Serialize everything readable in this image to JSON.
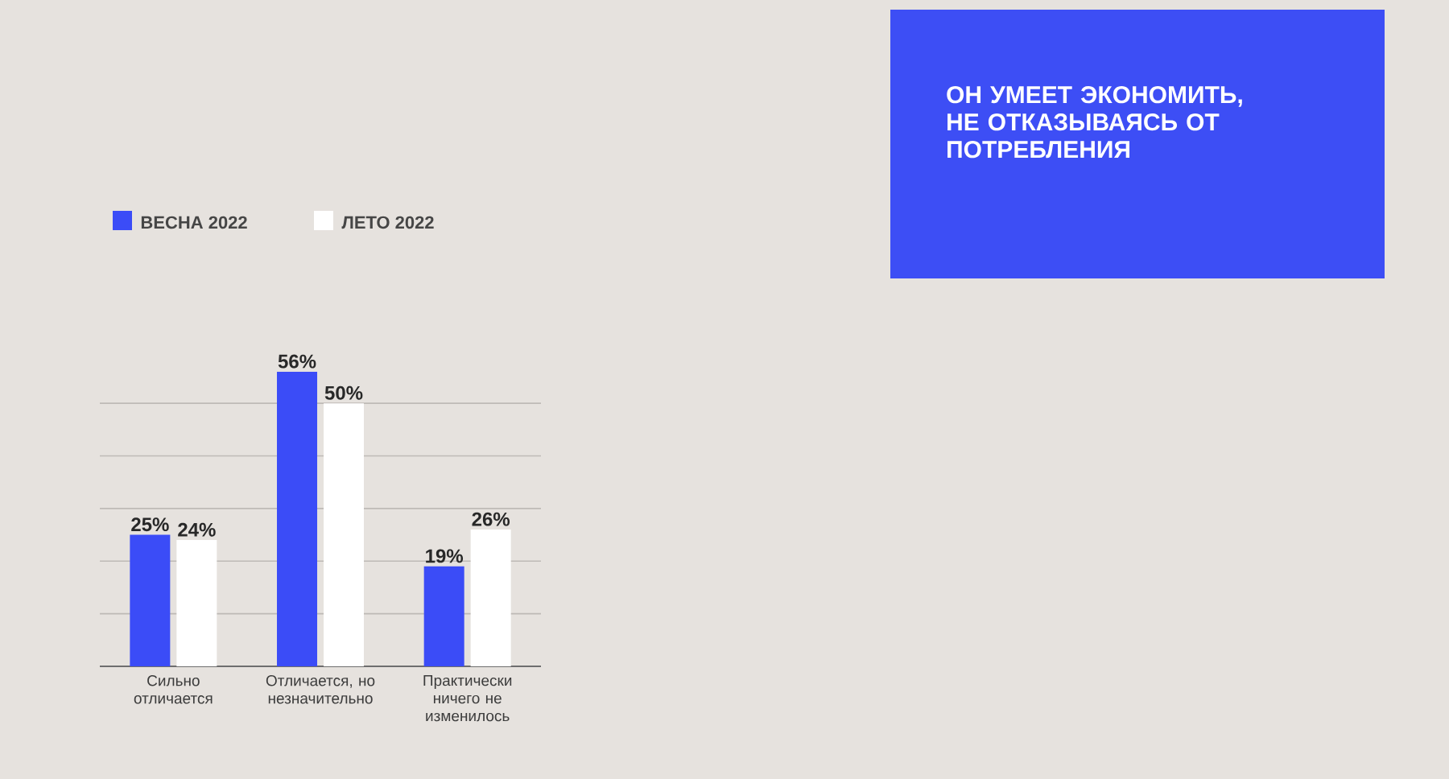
{
  "chart_data": {
    "type": "bar",
    "title": "ОН УМЕЕТ ЭКОНОМИТЬ, НЕ ОТКАЗЫВАЯСЬ ОТ ПОТРЕБЛЕНИЯ",
    "categories": [
      "Сильно отличается",
      "Отличается, но незначительно",
      "Практически ничего не изменилось"
    ],
    "series": [
      {
        "name": "ВЕСНА 2022",
        "color": "#3b4cf7",
        "values": [
          25,
          56,
          19
        ],
        "value_labels": [
          "25%",
          "56%",
          "19%"
        ]
      },
      {
        "name": "ЛЕТО 2022",
        "color": "#ffffff",
        "values": [
          24,
          50,
          26
        ],
        "value_labels": [
          "24%",
          "50%",
          "26%"
        ]
      }
    ],
    "tick_labels": "x",
    "grid": "y",
    "legend": "top left"
  }
}
